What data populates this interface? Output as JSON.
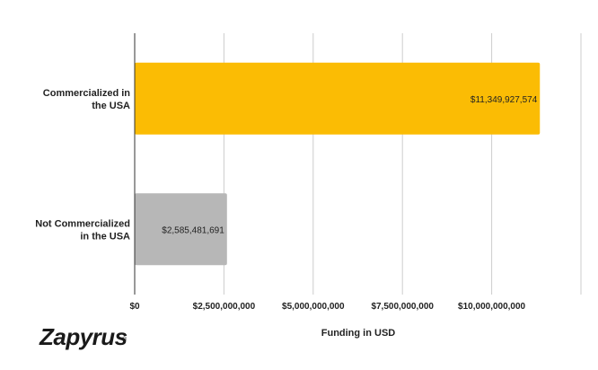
{
  "chart_data": {
    "type": "bar",
    "orientation": "horizontal",
    "categories": [
      [
        "Commercialized in",
        "the USA"
      ],
      [
        "Not Commercialized",
        "in the USA"
      ]
    ],
    "values": [
      11349927574,
      2585481691
    ],
    "data_labels": [
      "$11,349,927,574",
      "$2,585,481,691"
    ],
    "colors": [
      "#FBBC04",
      "#B7B7B7"
    ],
    "xlabel": "Funding in USD",
    "xlim": [
      0,
      12500000000
    ],
    "xticks": [
      0,
      2500000000,
      5000000000,
      7500000000,
      10000000000
    ],
    "xtick_labels": [
      "$0",
      "$2,500,000,000",
      "$5,000,000,000",
      "$7,500,000,000",
      "$10,000,000,000"
    ],
    "grid": true
  },
  "logo": {
    "text": "Zapyrus",
    "trademark": "®"
  }
}
